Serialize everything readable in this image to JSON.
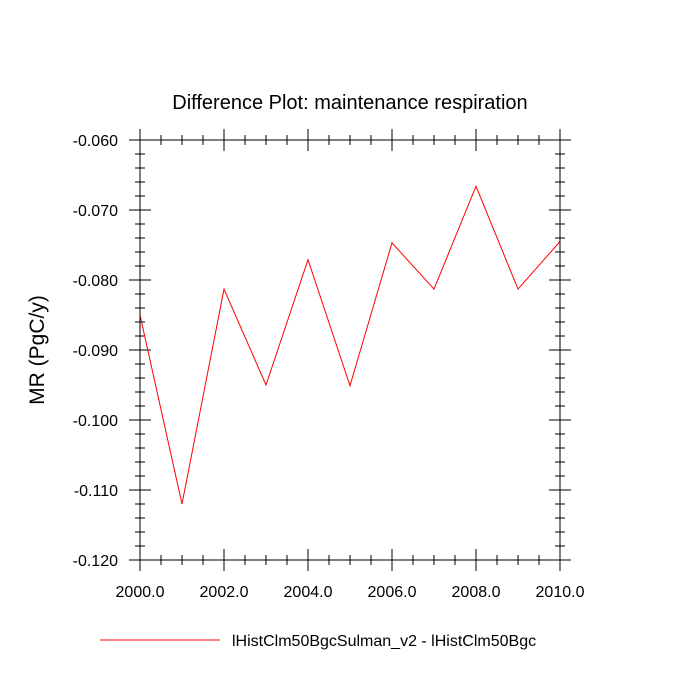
{
  "chart_data": {
    "type": "line",
    "title": "Difference Plot: maintenance respiration",
    "xlabel": "",
    "ylabel": "MR  (PgC/y)",
    "x": [
      2000,
      2001,
      2002,
      2003,
      2004,
      2005,
      2006,
      2007,
      2008,
      2009,
      2010
    ],
    "series": [
      {
        "name": "lHistClm50BgcSulman_v2 - lHistClm50Bgc",
        "color": "#ff0000",
        "values": [
          -0.085,
          -0.112,
          -0.0813,
          -0.095,
          -0.0771,
          -0.0951,
          -0.0747,
          -0.0813,
          -0.0666,
          -0.0813,
          -0.0745
        ]
      }
    ],
    "xlim": [
      2000,
      2010
    ],
    "ylim": [
      -0.12,
      -0.06
    ],
    "xticks": [
      2000,
      2002,
      2004,
      2006,
      2008,
      2010
    ],
    "xtick_labels": [
      "2000.0",
      "2002.0",
      "2004.0",
      "2006.0",
      "2008.0",
      "2010.0"
    ],
    "yticks": [
      -0.06,
      -0.07,
      -0.08,
      -0.09,
      -0.1,
      -0.11,
      -0.12
    ],
    "ytick_labels": [
      "-0.060",
      "-0.070",
      "-0.080",
      "-0.090",
      "-0.100",
      "-0.110",
      "-0.120"
    ],
    "x_minor_step": 0.5,
    "y_minor_step": 0.002,
    "grid": false,
    "legend_position": "bottom-center"
  }
}
